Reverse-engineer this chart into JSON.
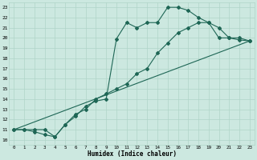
{
  "bg_color": "#cce8e0",
  "grid_color": "#b0d4c8",
  "line_color": "#1e6655",
  "xlim": [
    -0.5,
    23.5
  ],
  "ylim": [
    9.5,
    23.5
  ],
  "xticks": [
    0,
    1,
    2,
    3,
    4,
    5,
    6,
    7,
    8,
    9,
    10,
    11,
    12,
    13,
    14,
    15,
    16,
    17,
    18,
    19,
    20,
    21,
    22,
    23
  ],
  "yticks": [
    10,
    11,
    12,
    13,
    14,
    15,
    16,
    17,
    18,
    19,
    20,
    21,
    22,
    23
  ],
  "xlabel": "Humidex (Indice chaleur)",
  "line1_x": [
    0,
    1,
    2,
    3,
    4,
    5,
    6,
    7,
    8,
    9,
    10,
    11,
    12,
    13,
    14,
    15,
    16,
    17,
    18,
    19,
    20,
    21,
    22,
    23
  ],
  "line1_y": [
    11,
    11,
    11,
    11,
    10.3,
    11.5,
    12.5,
    13.0,
    14.0,
    14.5,
    15.0,
    15.5,
    16.5,
    17.0,
    18.5,
    19.5,
    20.5,
    21.0,
    21.5,
    21.5,
    20.0,
    20.0,
    19.8,
    19.7
  ],
  "line2_x": [
    0,
    1,
    2,
    3,
    4,
    5,
    6,
    7,
    8,
    9,
    10,
    11,
    12,
    13,
    14,
    15,
    16,
    17,
    18,
    19,
    20,
    21,
    22,
    23
  ],
  "line2_y": [
    11,
    11,
    10.8,
    10.5,
    10.3,
    11.5,
    12.3,
    13.3,
    13.8,
    14.0,
    19.9,
    21.5,
    21.0,
    21.5,
    21.5,
    23.0,
    23.0,
    22.7,
    22.0,
    21.5,
    21.0,
    20.0,
    20.0,
    19.7
  ],
  "line3_x": [
    0,
    23
  ],
  "line3_y": [
    11,
    19.7
  ]
}
